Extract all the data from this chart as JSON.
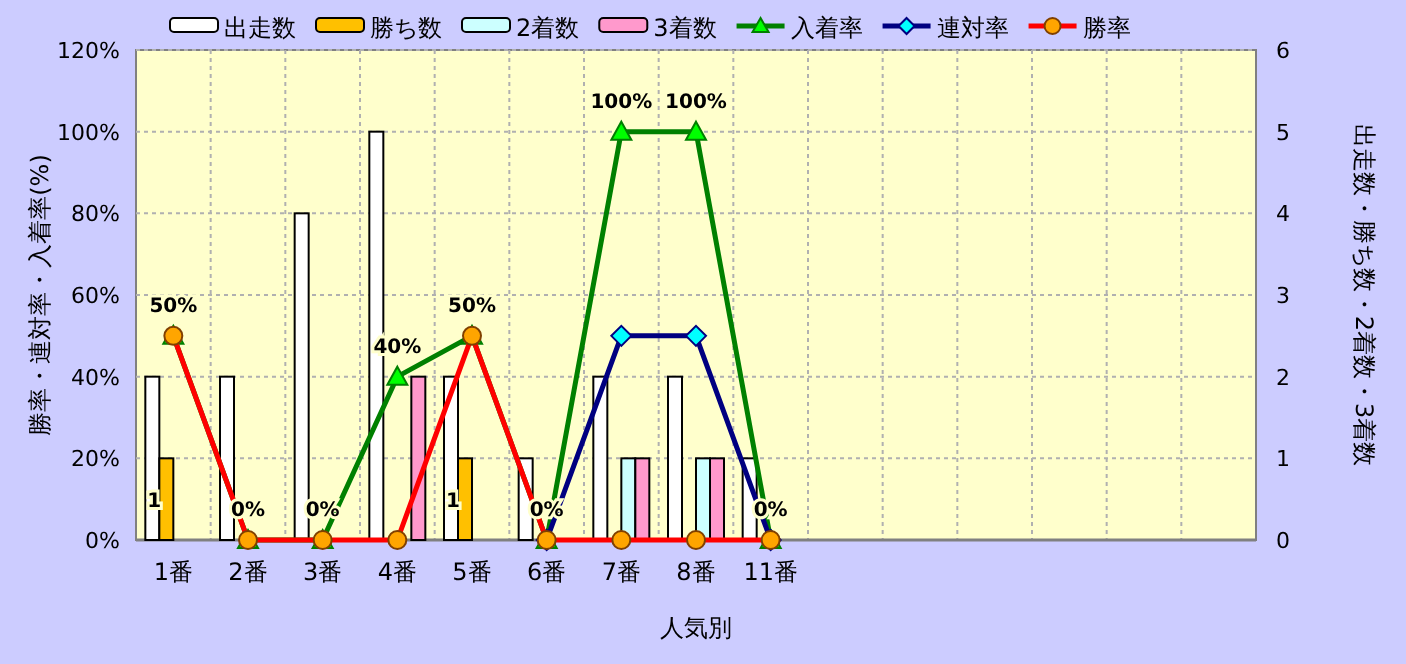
{
  "chart_data": {
    "type": "bar",
    "categories": [
      "1番",
      "2番",
      "3番",
      "4番",
      "5番",
      "6番",
      "7番",
      "8番",
      "11番",
      null,
      null,
      null,
      null,
      null,
      null
    ],
    "xlabel": "人気別",
    "ylabel": "勝率・連対率・入着率(%)",
    "y2label": "出走数・勝ち数・2着数・3着数",
    "ylim": [
      0,
      120
    ],
    "yticks": [
      {
        "value": 0,
        "label": "0%"
      },
      {
        "value": 20,
        "label": "20%"
      },
      {
        "value": 40,
        "label": "40%"
      },
      {
        "value": 60,
        "label": "60%"
      },
      {
        "value": 80,
        "label": "80%"
      },
      {
        "value": 100,
        "label": "100%"
      },
      {
        "value": 120,
        "label": "120%"
      }
    ],
    "y2lim": [
      0,
      6
    ],
    "y2ticks": [
      0,
      1,
      2,
      3,
      4,
      5,
      6
    ],
    "grid": true,
    "legend": "top",
    "series": [
      {
        "name": "出走数",
        "axis": "y2",
        "color": "#ffffff",
        "values": [
          2,
          2,
          4,
          5,
          2,
          1,
          2,
          2,
          1,
          null,
          null,
          null,
          null,
          null,
          null
        ]
      },
      {
        "name": "勝ち数",
        "axis": "y2",
        "color": "#ffc000",
        "values": [
          1,
          0,
          0,
          0,
          1,
          0,
          0,
          0,
          0,
          null,
          null,
          null,
          null,
          null,
          null
        ],
        "value_labels": [
          "1",
          null,
          null,
          null,
          "1",
          null,
          null,
          null,
          null,
          null,
          null,
          null,
          null,
          null,
          null
        ]
      },
      {
        "name": "2着数",
        "axis": "y2",
        "color": "#ccffff",
        "values": [
          0,
          0,
          0,
          0,
          0,
          0,
          1,
          1,
          0,
          null,
          null,
          null,
          null,
          null,
          null
        ]
      },
      {
        "name": "3着数",
        "axis": "y2",
        "color": "#ff99cc",
        "values": [
          0,
          0,
          0,
          2,
          0,
          0,
          1,
          1,
          0,
          null,
          null,
          null,
          null,
          null,
          null
        ]
      },
      {
        "name": "入着率",
        "type": "line",
        "color": "#008000",
        "marker": "triangle",
        "values": [
          50,
          0,
          0,
          40,
          50,
          0,
          100,
          100,
          0,
          null,
          null,
          null,
          null,
          null,
          null
        ],
        "value_labels": [
          "50%",
          "0%",
          "0%",
          "40%",
          "50%",
          "0%",
          "100%",
          "100%",
          "0%",
          null,
          null,
          null,
          null,
          null,
          null
        ]
      },
      {
        "name": "連対率",
        "type": "line",
        "color": "#000080",
        "marker": "diamond",
        "values": [
          null,
          null,
          null,
          null,
          null,
          0,
          50,
          50,
          0,
          null,
          null,
          null,
          null,
          null,
          null
        ]
      },
      {
        "name": "勝率",
        "type": "line",
        "color": "#ff0000",
        "marker": "circle",
        "values": [
          50,
          0,
          0,
          0,
          50,
          0,
          0,
          0,
          0,
          null,
          null,
          null,
          null,
          null,
          null
        ]
      }
    ]
  }
}
